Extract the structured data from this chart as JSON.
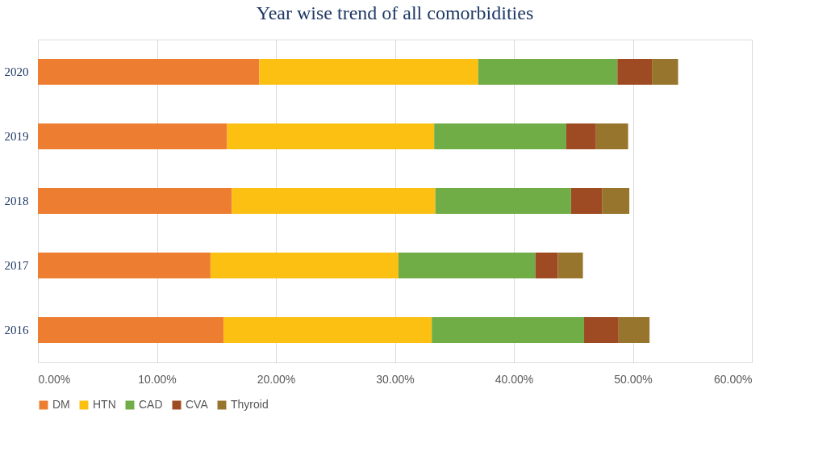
{
  "chart_data": {
    "type": "bar",
    "orientation": "horizontal",
    "stacked": true,
    "title": "Year wise trend of all comorbidities",
    "categories": [
      "2020",
      "2019",
      "2018",
      "2017",
      "2016"
    ],
    "series": [
      {
        "name": "DM",
        "color": "#ed7d31",
        "values": [
          18.6,
          15.9,
          16.3,
          14.5,
          15.6
        ]
      },
      {
        "name": "HTN",
        "color": "#fbc012",
        "values": [
          18.4,
          17.4,
          17.1,
          15.8,
          17.5
        ]
      },
      {
        "name": "CAD",
        "color": "#70ad47",
        "values": [
          11.7,
          11.1,
          11.4,
          11.5,
          12.8
        ]
      },
      {
        "name": "CVA",
        "color": "#9e4a22",
        "values": [
          2.9,
          2.5,
          2.6,
          1.9,
          2.9
        ]
      },
      {
        "name": "Thyroid",
        "color": "#98752d",
        "values": [
          2.2,
          2.7,
          2.3,
          2.1,
          2.6
        ]
      }
    ],
    "xlim": [
      0,
      60
    ],
    "xticks": [
      {
        "value": 0,
        "label": "0.00%"
      },
      {
        "value": 10,
        "label": "10.00%"
      },
      {
        "value": 20,
        "label": "20.00%"
      },
      {
        "value": 30,
        "label": "30.00%"
      },
      {
        "value": 40,
        "label": "40.00%"
      },
      {
        "value": 50,
        "label": "50.00%"
      },
      {
        "value": 60,
        "label": "60.00%"
      }
    ],
    "grid": "x",
    "legend": "bottom"
  }
}
